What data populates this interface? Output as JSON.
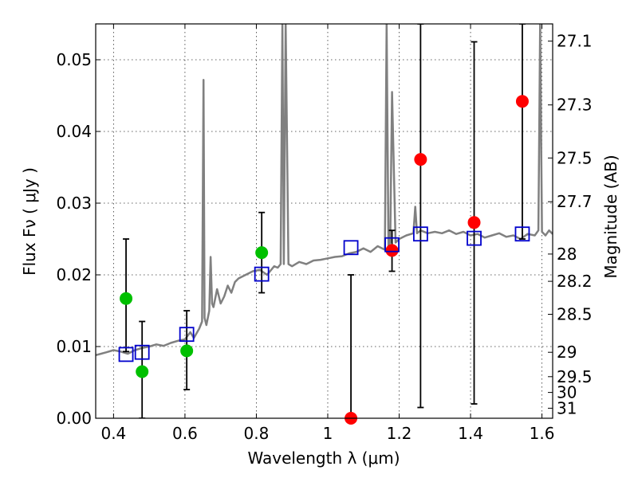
{
  "chart_data": {
    "type": "scatter",
    "xlabel": "Wavelength  λ (μm)",
    "ylabel": "Flux  Fν  ( μJy )",
    "ylabel_right": "Magnitude (AB)",
    "xlim": [
      0.35,
      1.63
    ],
    "ylim": [
      0.0,
      0.055
    ],
    "grid": true,
    "x_ticks": [
      {
        "value": 0.4,
        "label": "0.4"
      },
      {
        "value": 0.6,
        "label": "0.6"
      },
      {
        "value": 0.8,
        "label": "0.8"
      },
      {
        "value": 1.0,
        "label": "1"
      },
      {
        "value": 1.2,
        "label": "1.2"
      },
      {
        "value": 1.4,
        "label": "1.4"
      },
      {
        "value": 1.6,
        "label": "1.6"
      }
    ],
    "y_ticks": [
      {
        "value": 0.0,
        "label": "0.00"
      },
      {
        "value": 0.01,
        "label": "0.01"
      },
      {
        "value": 0.02,
        "label": "0.02"
      },
      {
        "value": 0.03,
        "label": "0.03"
      },
      {
        "value": 0.04,
        "label": "0.04"
      },
      {
        "value": 0.05,
        "label": "0.05"
      }
    ],
    "right_ticks": [
      {
        "flux": 0.0526,
        "label": "27.1"
      },
      {
        "flux": 0.0437,
        "label": "27.3"
      },
      {
        "flux": 0.0363,
        "label": "27.5"
      },
      {
        "flux": 0.0302,
        "label": "27.7"
      },
      {
        "flux": 0.0229,
        "label": "28"
      },
      {
        "flux": 0.0191,
        "label": "28.2"
      },
      {
        "flux": 0.0145,
        "label": "28.5"
      },
      {
        "flux": 0.0092,
        "label": "29"
      },
      {
        "flux": 0.0058,
        "label": "29.5"
      },
      {
        "flux": 0.0036,
        "label": "30"
      },
      {
        "flux": 0.0014,
        "label": "31"
      }
    ],
    "spectrum": {
      "color": "#808080",
      "x": [
        0.35,
        0.38,
        0.4,
        0.42,
        0.44,
        0.46,
        0.48,
        0.5,
        0.52,
        0.54,
        0.56,
        0.58,
        0.6,
        0.615,
        0.625,
        0.64,
        0.648,
        0.652,
        0.655,
        0.66,
        0.668,
        0.672,
        0.676,
        0.68,
        0.69,
        0.7,
        0.71,
        0.72,
        0.73,
        0.74,
        0.75,
        0.77,
        0.79,
        0.81,
        0.83,
        0.85,
        0.86,
        0.868,
        0.873,
        0.877,
        0.882,
        0.89,
        0.9,
        0.92,
        0.94,
        0.96,
        0.98,
        1.0,
        1.02,
        1.04,
        1.06,
        1.08,
        1.1,
        1.12,
        1.14,
        1.16,
        1.165,
        1.17,
        1.175,
        1.18,
        1.19,
        1.2,
        1.22,
        1.24,
        1.245,
        1.25,
        1.26,
        1.28,
        1.3,
        1.32,
        1.34,
        1.36,
        1.38,
        1.4,
        1.42,
        1.44,
        1.46,
        1.48,
        1.5,
        1.52,
        1.54,
        1.56,
        1.58,
        1.59,
        1.595,
        1.6,
        1.61,
        1.62,
        1.63
      ],
      "y": [
        0.0088,
        0.0092,
        0.0095,
        0.0093,
        0.009,
        0.0095,
        0.0098,
        0.01,
        0.0103,
        0.0101,
        0.0105,
        0.0108,
        0.011,
        0.012,
        0.0112,
        0.0125,
        0.0135,
        0.0472,
        0.014,
        0.013,
        0.015,
        0.0225,
        0.016,
        0.0155,
        0.018,
        0.016,
        0.017,
        0.0185,
        0.0175,
        0.019,
        0.0195,
        0.02,
        0.0205,
        0.0207,
        0.02,
        0.0212,
        0.021,
        0.0215,
        0.055,
        0.0215,
        0.055,
        0.0215,
        0.0212,
        0.0218,
        0.0215,
        0.022,
        0.0221,
        0.0223,
        0.0225,
        0.0226,
        0.023,
        0.0232,
        0.0237,
        0.0232,
        0.024,
        0.0235,
        0.055,
        0.024,
        0.0245,
        0.0455,
        0.0245,
        0.025,
        0.0255,
        0.0258,
        0.0295,
        0.0258,
        0.0262,
        0.0258,
        0.026,
        0.0258,
        0.0262,
        0.0257,
        0.026,
        0.0255,
        0.0257,
        0.0252,
        0.0255,
        0.0258,
        0.0253,
        0.0255,
        0.025,
        0.0257,
        0.0255,
        0.0262,
        0.055,
        0.026,
        0.0255,
        0.0262,
        0.0257
      ]
    },
    "series": [
      {
        "marker": "green-circle",
        "color": "#00c000",
        "points": [
          {
            "x": 0.435,
            "y": 0.0167
          },
          {
            "x": 0.48,
            "y": 0.0065
          },
          {
            "x": 0.605,
            "y": 0.0094
          },
          {
            "x": 0.815,
            "y": 0.0231
          }
        ]
      },
      {
        "marker": "red-circle",
        "color": "#ff0000",
        "points": [
          {
            "x": 1.065,
            "y": 0.0
          },
          {
            "x": 1.18,
            "y": 0.0234
          },
          {
            "x": 1.26,
            "y": 0.0361
          },
          {
            "x": 1.41,
            "y": 0.0273
          },
          {
            "x": 1.545,
            "y": 0.0442
          }
        ]
      },
      {
        "marker": "blue-open-square",
        "color": "#0000cc",
        "points": [
          {
            "x": 0.435,
            "y": 0.0089,
            "err": [
              0.0093,
              0.025
            ]
          },
          {
            "x": 0.48,
            "y": 0.0092,
            "err": [
              0.0,
              0.0135
            ]
          },
          {
            "x": 0.605,
            "y": 0.0117,
            "err": [
              0.004,
              0.015
            ]
          },
          {
            "x": 0.815,
            "y": 0.0201,
            "err": [
              0.0175,
              0.0287
            ]
          },
          {
            "x": 1.065,
            "y": 0.0238,
            "err": [
              0.0,
              0.02
            ]
          },
          {
            "x": 1.18,
            "y": 0.0242,
            "err": [
              0.0205,
              0.0262
            ]
          },
          {
            "x": 1.26,
            "y": 0.0257,
            "err": [
              0.0015,
              0.055
            ]
          },
          {
            "x": 1.41,
            "y": 0.0251,
            "err": [
              0.002,
              0.0525
            ]
          },
          {
            "x": 1.545,
            "y": 0.0257,
            "err": [
              0.025,
              0.055
            ]
          }
        ]
      }
    ]
  }
}
